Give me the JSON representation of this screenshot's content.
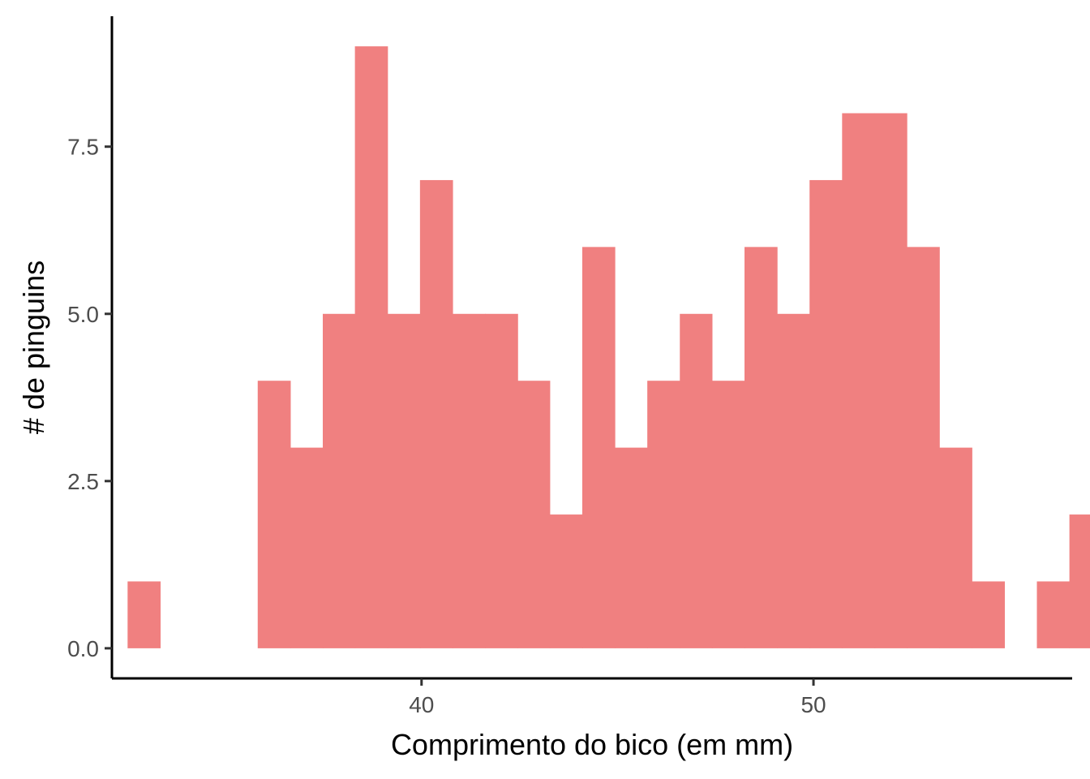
{
  "chart_data": {
    "type": "bar",
    "subtype": "histogram",
    "title": "",
    "xlabel": "Comprimento do bico (em mm)",
    "ylabel": "# de pinguins",
    "xlim": [
      32.1,
      56.6
    ],
    "ylim": [
      -0.45,
      9.45
    ],
    "x_ticks": [
      40,
      50
    ],
    "x_tick_labels": [
      "40",
      "50"
    ],
    "y_ticks": [
      0,
      2.5,
      5,
      7.5
    ],
    "y_tick_labels": [
      "0.0",
      "2.5",
      "5.0",
      "7.5"
    ],
    "grid": false,
    "legend": "none",
    "bins": [
      {
        "x0": 32.5,
        "x1": 33.33,
        "count": 1
      },
      {
        "x0": 35.82,
        "x1": 36.65,
        "count": 4
      },
      {
        "x0": 36.65,
        "x1": 37.48,
        "count": 3
      },
      {
        "x0": 37.48,
        "x1": 38.3,
        "count": 5
      },
      {
        "x0": 38.3,
        "x1": 39.13,
        "count": 9
      },
      {
        "x0": 39.13,
        "x1": 39.96,
        "count": 5
      },
      {
        "x0": 39.96,
        "x1": 40.79,
        "count": 7
      },
      {
        "x0": 40.79,
        "x1": 41.62,
        "count": 5
      },
      {
        "x0": 41.62,
        "x1": 42.45,
        "count": 5
      },
      {
        "x0": 42.45,
        "x1": 43.27,
        "count": 4
      },
      {
        "x0": 43.27,
        "x1": 44.1,
        "count": 2
      },
      {
        "x0": 44.1,
        "x1": 44.93,
        "count": 6
      },
      {
        "x0": 44.93,
        "x1": 45.76,
        "count": 3
      },
      {
        "x0": 45.76,
        "x1": 46.59,
        "count": 4
      },
      {
        "x0": 46.59,
        "x1": 47.41,
        "count": 5
      },
      {
        "x0": 47.41,
        "x1": 48.24,
        "count": 4
      },
      {
        "x0": 48.24,
        "x1": 49.07,
        "count": 6
      },
      {
        "x0": 49.07,
        "x1": 49.9,
        "count": 5
      },
      {
        "x0": 49.9,
        "x1": 50.73,
        "count": 7
      },
      {
        "x0": 50.73,
        "x1": 51.56,
        "count": 8
      },
      {
        "x0": 51.56,
        "x1": 52.38,
        "count": 8
      },
      {
        "x0": 52.38,
        "x1": 53.21,
        "count": 6
      },
      {
        "x0": 53.21,
        "x1": 54.04,
        "count": 3
      },
      {
        "x0": 54.04,
        "x1": 54.87,
        "count": 1
      },
      {
        "x0": 55.7,
        "x1": 56.53,
        "count": 1
      },
      {
        "x0": 56.53,
        "x1": 57.35,
        "count": 2
      }
    ],
    "colors": {
      "fill": "#F08080",
      "axis": "#000000",
      "tick_label": "#4d4d4d",
      "background": "#ffffff"
    }
  }
}
